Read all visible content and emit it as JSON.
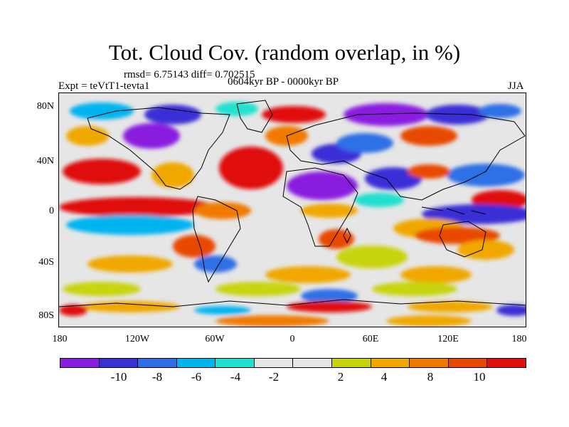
{
  "title": "Tot. Cloud Cov. (random overlap, in %)",
  "rmsd_line": "rmsd= 6.75143 diff= 0.702515",
  "period": "0604kyr BP - 0000kyr BP",
  "experiment": "Expt = teVtT1-tevta1",
  "season": "JJA",
  "lat_labels": [
    "80N",
    "40N",
    "0",
    "40S",
    "80S"
  ],
  "lon_labels": [
    "180",
    "120W",
    "60W",
    "0",
    "60E",
    "120E",
    "180"
  ],
  "colorbar": {
    "colors": [
      "#8a1ee0",
      "#3b2fd6",
      "#2e6fe6",
      "#00b4f0",
      "#22e0d0",
      "#e6e6e6",
      "#e6e6e6",
      "#c8d40a",
      "#f0a800",
      "#f07a00",
      "#e84800",
      "#e01010"
    ],
    "labels": [
      "-10",
      "-8",
      "-6",
      "-4",
      "-2",
      "2",
      "4",
      "8",
      "10"
    ]
  }
}
